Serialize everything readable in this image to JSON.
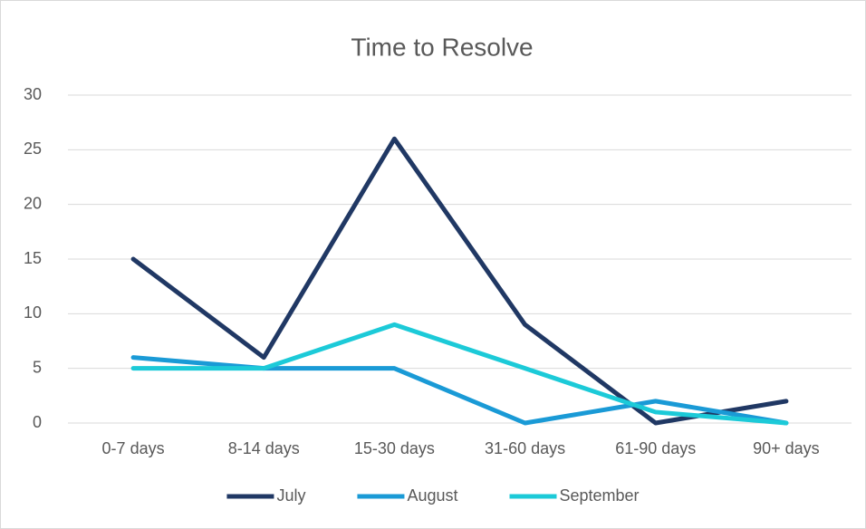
{
  "chart_data": {
    "type": "line",
    "title": "Time to Resolve",
    "categories": [
      "0-7 days",
      "8-14 days",
      "15-30 days",
      "31-60 days",
      "61-90 days",
      "90+ days"
    ],
    "series": [
      {
        "name": "July",
        "color": "#203864",
        "values": [
          15,
          6,
          26,
          9,
          0,
          2
        ]
      },
      {
        "name": "August",
        "color": "#1a9ad6",
        "values": [
          6,
          5,
          5,
          0,
          2,
          0
        ]
      },
      {
        "name": "September",
        "color": "#1ccad8",
        "values": [
          5,
          5,
          9,
          5,
          1,
          0
        ]
      }
    ],
    "ylim": [
      0,
      30
    ],
    "yticks": [
      0,
      5,
      10,
      15,
      20,
      25,
      30
    ],
    "grid": true,
    "legend": "bottom"
  }
}
